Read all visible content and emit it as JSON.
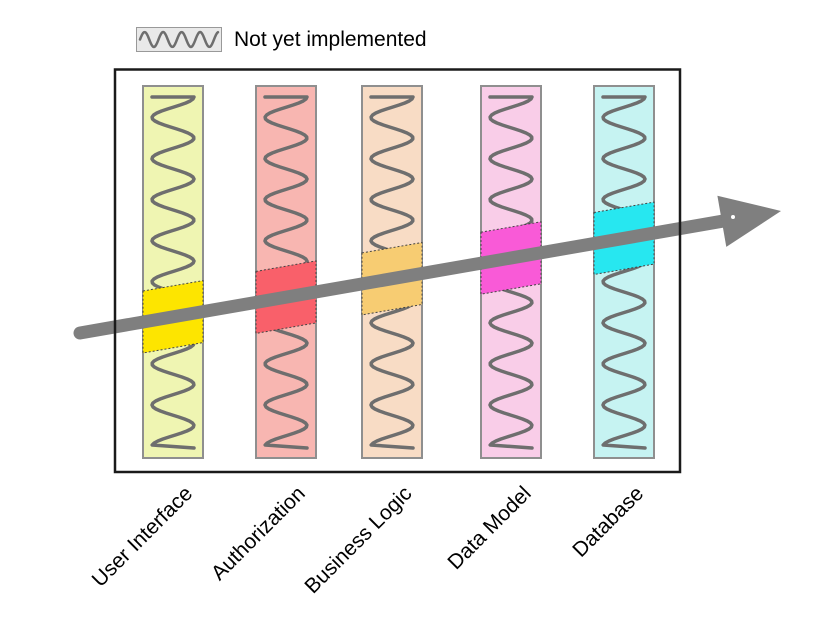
{
  "legend": {
    "label": "Not yet implemented",
    "swatch_fill": "#e9e9e9",
    "swatch_border": "#999999",
    "wave_color": "#6e6e6e"
  },
  "diagram": {
    "frame_color": "#1a1a1a",
    "background": "#ffffff",
    "wave_color": "#6e6e6e",
    "bar_border_color": "#8f8f8f",
    "highlight_border_color": "#444444",
    "arrow_color": "#7f7f7f",
    "layers": [
      {
        "name": "User Interface",
        "fill": "#eff5b2",
        "highlight_fill": "#fde500"
      },
      {
        "name": "Authorization",
        "fill": "#f8b6b1",
        "highlight_fill": "#f9606a"
      },
      {
        "name": "Business Logic",
        "fill": "#f8dcc5",
        "highlight_fill": "#f7cc72"
      },
      {
        "name": "Data Model",
        "fill": "#f9cde8",
        "highlight_fill": "#f95ad7"
      },
      {
        "name": "Database",
        "fill": "#c6f3f2",
        "highlight_fill": "#27e7f0"
      }
    ]
  }
}
